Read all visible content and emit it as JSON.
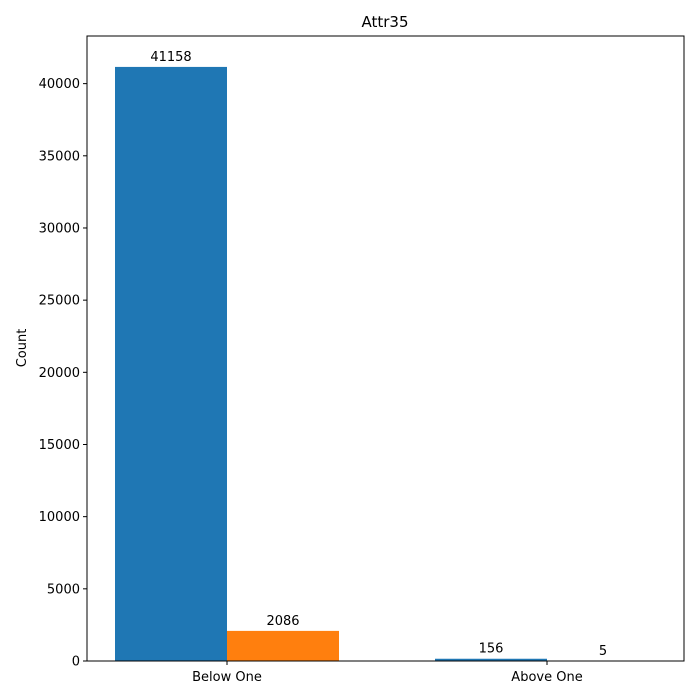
{
  "chart_data": {
    "type": "bar",
    "title": "Attr35",
    "xlabel": "",
    "ylabel": "Count",
    "categories": [
      "Below One",
      "Above One"
    ],
    "series": [
      {
        "values": [
          41158,
          156
        ],
        "color": "#1f77b4"
      },
      {
        "values": [
          2086,
          5
        ],
        "color": "#ff7f0e"
      }
    ],
    "data_labels": [
      [
        "41158",
        "156"
      ],
      [
        "2086",
        "5"
      ]
    ],
    "ylim": [
      0,
      43300
    ],
    "yticks": [
      0,
      5000,
      10000,
      15000,
      20000,
      25000,
      30000,
      35000,
      40000
    ],
    "ytick_labels": [
      "0",
      "5000",
      "10000",
      "15000",
      "20000",
      "25000",
      "30000",
      "35000",
      "40000"
    ],
    "grid": false,
    "legend": "none"
  }
}
